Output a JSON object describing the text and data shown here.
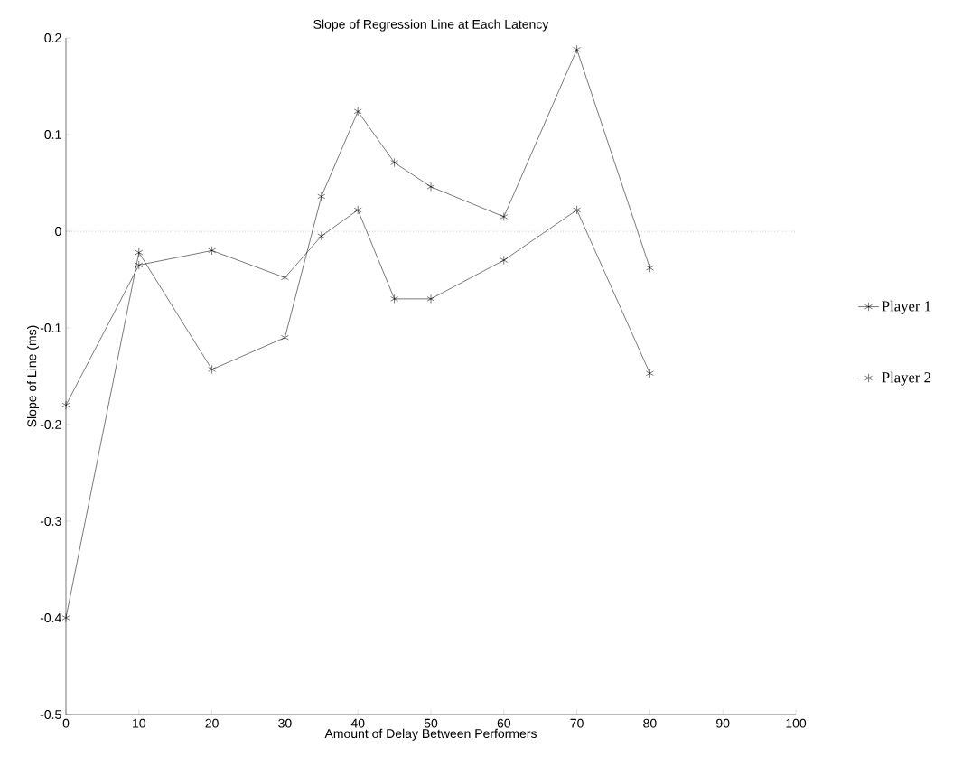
{
  "chart_data": {
    "type": "line",
    "title": "Slope of Regression Line at Each Latency",
    "xlabel": "Amount of Delay Between Performers",
    "ylabel": "Slope of Line (ms)",
    "x": [
      0,
      10,
      20,
      30,
      35,
      40,
      45,
      50,
      60,
      70,
      80
    ],
    "series": [
      {
        "name": "Player 1",
        "color": "#000000",
        "values": [
          -0.4,
          -0.022,
          -0.143,
          -0.11,
          0.036,
          0.124,
          0.071,
          0.046,
          0.015,
          0.188,
          -0.038
        ]
      },
      {
        "name": "Player 2",
        "color": "#000000",
        "values": [
          -0.18,
          -0.035,
          -0.02,
          -0.048,
          -0.005,
          0.022,
          -0.07,
          -0.07,
          -0.03,
          0.022,
          -0.147
        ]
      }
    ],
    "xlim": [
      0,
      100
    ],
    "ylim": [
      -0.5,
      0.2
    ],
    "xticks": [
      0,
      10,
      20,
      30,
      40,
      50,
      60,
      70,
      80,
      90,
      100
    ],
    "yticks": [
      -0.5,
      -0.4,
      -0.3,
      -0.2,
      -0.1,
      0,
      0.1,
      0.2
    ],
    "ref_lines": [
      {
        "axis": "y",
        "value": 0,
        "line_style": "dotted"
      }
    ],
    "marker": "cross",
    "line_style": "solid",
    "grid": false,
    "legend": "right"
  }
}
